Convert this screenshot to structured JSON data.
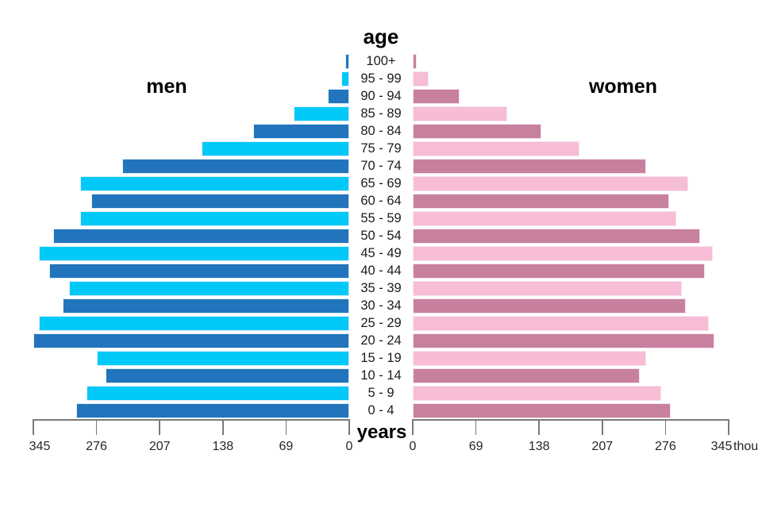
{
  "labels": {
    "title": "age",
    "men": "men",
    "women": "women",
    "years": "years",
    "unit": "thou"
  },
  "colors": {
    "men_dark": "#2274BC",
    "men_light": "#00C9F8",
    "women_dark": "#C7809E",
    "women_light": "#F7BDD6",
    "axis": "#7A7A7A",
    "text": "#1C1C1C"
  },
  "chart_data": {
    "type": "bar",
    "subtype": "population_pyramid",
    "orientation": "horizontal",
    "title": "age",
    "xlabel": "years",
    "unit_label": "thou",
    "unit": "thousands",
    "grid": false,
    "axis_ticks": [
      0,
      69,
      138,
      207,
      276,
      345
    ],
    "xlim": [
      0,
      345
    ],
    "categories_top_to_bottom": [
      "100+",
      "95 - 99",
      "90 - 94",
      "85 - 89",
      "80 - 84",
      "75 - 79",
      "70 - 74",
      "65 - 69",
      "60 - 64",
      "55 - 59",
      "50 - 54",
      "45 - 49",
      "40 - 44",
      "35 - 39",
      "30 - 34",
      "25 - 29",
      "20 - 24",
      "15 - 19",
      "10 - 14",
      "5 - 9",
      "0 - 4"
    ],
    "series": [
      {
        "name": "men",
        "side": "left",
        "colors_alternate": [
          "#2274BC",
          "#00C9F8"
        ],
        "values": [
          4,
          9,
          23,
          61,
          105,
          161,
          248,
          294,
          282,
          294,
          323,
          339,
          328,
          306,
          313,
          339,
          345,
          276,
          266,
          287,
          298
        ]
      },
      {
        "name": "women",
        "side": "right",
        "colors_alternate": [
          "#C7809E",
          "#F7BDD6"
        ],
        "values": [
          4,
          17,
          51,
          103,
          140,
          182,
          255,
          301,
          280,
          288,
          314,
          328,
          319,
          294,
          298,
          323,
          329,
          255,
          248,
          271,
          282
        ]
      }
    ]
  }
}
